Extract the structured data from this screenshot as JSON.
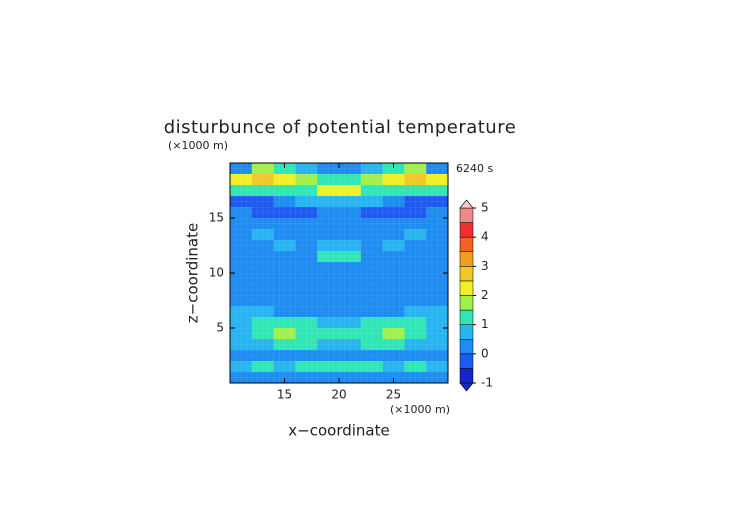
{
  "chart_data": {
    "type": "contour",
    "title": "disturbunce of potential temperature",
    "time_label": "6240 s",
    "xlabel": "x−coordinate",
    "ylabel": "z−coordinate",
    "x_unit": "(×1000 m)",
    "y_unit": "(×1000 m)",
    "xlim": [
      10,
      30
    ],
    "ylim": [
      0,
      20
    ],
    "xticks": [
      15,
      20,
      25
    ],
    "yticks": [
      5,
      10,
      15
    ],
    "x": [
      11,
      13,
      15,
      17,
      19,
      21,
      23,
      25,
      27,
      29
    ],
    "y": [
      19.5,
      18.5,
      17.5,
      16.5,
      15.5,
      14.5,
      13.5,
      12.5,
      11.5,
      10.5,
      9.5,
      8.5,
      7.5,
      6.5,
      5.5,
      4.5,
      3.5,
      2.5,
      1.5,
      0.5
    ],
    "z": [
      [
        0,
        1.5,
        1,
        0.5,
        0,
        0,
        0.5,
        1,
        1.5,
        0
      ],
      [
        2,
        2.5,
        2,
        1.5,
        1,
        1,
        1.5,
        2,
        2.5,
        2
      ],
      [
        1,
        1,
        1,
        1,
        2,
        2,
        1,
        1,
        1,
        1
      ],
      [
        -0.5,
        -0.5,
        0,
        0.5,
        0.5,
        0.5,
        0.5,
        0,
        -0.5,
        -0.5
      ],
      [
        0,
        -0.5,
        -0.5,
        -0.5,
        0,
        0,
        -0.5,
        -0.5,
        -0.5,
        0
      ],
      [
        0.3,
        0.3,
        0,
        0,
        0.3,
        0.3,
        0,
        0,
        0.3,
        0.3
      ],
      [
        0.3,
        0.7,
        0.3,
        0.3,
        0.3,
        0.3,
        0.3,
        0.3,
        0.7,
        0.3
      ],
      [
        0.3,
        0.3,
        0.7,
        0.3,
        0.7,
        0.7,
        0.3,
        0.7,
        0.3,
        0.3
      ],
      [
        0.3,
        0.3,
        0.3,
        0.3,
        1,
        1,
        0.3,
        0.3,
        0.3,
        0.3
      ],
      [
        0.3,
        0.3,
        0.3,
        0.3,
        0.3,
        0.3,
        0.3,
        0.3,
        0.3,
        0.3
      ],
      [
        0.3,
        0.3,
        0.3,
        0.3,
        0,
        0,
        0.3,
        0.3,
        0.3,
        0.3
      ],
      [
        0.3,
        0.3,
        0.3,
        0.3,
        0,
        0,
        0.3,
        0.3,
        0.3,
        0.3
      ],
      [
        0.3,
        0.3,
        0.3,
        0.3,
        0.3,
        0.3,
        0.3,
        0.3,
        0.3,
        0.3
      ],
      [
        0.7,
        0.7,
        0.3,
        0.3,
        0.3,
        0.3,
        0.3,
        0.3,
        0.7,
        0.7
      ],
      [
        0.7,
        1,
        1,
        1,
        0.7,
        0.7,
        1,
        1,
        1,
        0.7
      ],
      [
        0.7,
        1,
        1.5,
        1,
        1,
        1,
        1,
        1.5,
        1,
        0.7
      ],
      [
        0.7,
        0.7,
        1,
        1,
        0.7,
        0.7,
        1,
        1,
        0.7,
        0.7
      ],
      [
        0.3,
        0.3,
        0.3,
        0.3,
        0.3,
        0.3,
        0.3,
        0.3,
        0.3,
        0.3
      ],
      [
        0.7,
        1,
        0.7,
        1,
        1,
        1,
        1,
        0.7,
        1,
        0.7
      ],
      [
        0,
        0,
        0,
        0,
        0,
        0,
        0,
        0,
        0,
        0
      ]
    ],
    "levels": [
      -1,
      -0.5,
      0,
      0.5,
      1,
      1.5,
      2,
      2.5,
      3,
      3.5,
      4,
      4.5,
      5
    ],
    "colors": [
      "#1428c8",
      "#1e5af0",
      "#1e8cf0",
      "#28b4f0",
      "#30e6b4",
      "#a0f050",
      "#f0f028",
      "#f0c828",
      "#f0a020",
      "#f06420",
      "#f03030",
      "#f08888"
    ],
    "under_color": "#1428c8",
    "over_color": "#f8c8c8",
    "colorbar_ticks": [
      -1,
      0,
      1,
      2,
      3,
      4,
      5
    ]
  }
}
